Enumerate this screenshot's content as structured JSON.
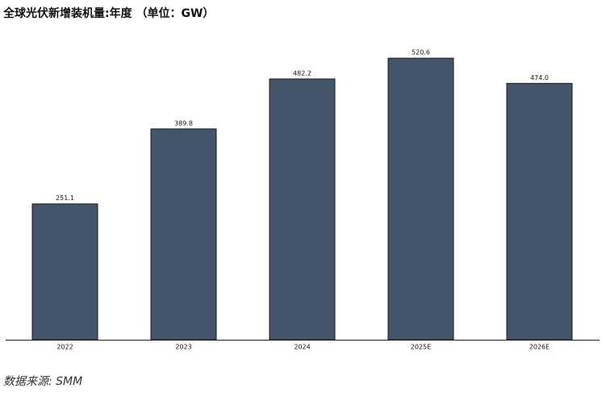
{
  "chart_data": {
    "type": "bar",
    "title": "全球光伏新增装机量:年度 （单位：GW）",
    "categories": [
      "2022",
      "2023",
      "2024",
      "2025E",
      "2026E"
    ],
    "values": [
      251.1,
      389.8,
      482.2,
      520.6,
      474
    ],
    "value_labels": [
      "251.1",
      "389.8",
      "482.2",
      "520.6",
      "474.0"
    ],
    "color": "#44546a",
    "ylim": [
      0,
      570
    ],
    "source": "数据来源: SMM"
  }
}
